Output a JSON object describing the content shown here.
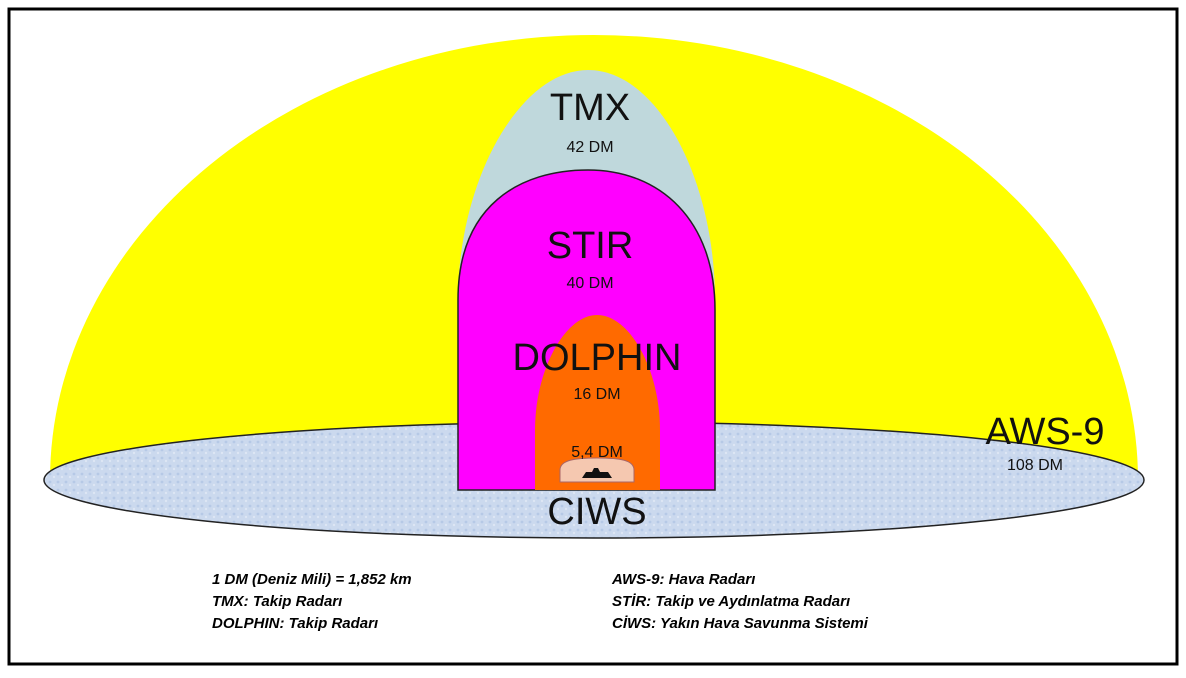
{
  "nodes": [
    {
      "label": "AWS-9",
      "range": "108 DM"
    },
    {
      "label": "TMX",
      "range": "42 DM"
    },
    {
      "label": "STIR",
      "range": "40 DM"
    },
    {
      "label": "DOLPHIN",
      "range": "16 DM"
    },
    {
      "label": "CIWS",
      "range": "5,4 DM"
    }
  ],
  "legend": {
    "left": [
      "1 DM (Deniz Mili) = 1,852 km",
      "TMX: Takip Radarı",
      "DOLPHIN: Takip Radarı"
    ],
    "right": [
      "AWS-9: Hava Radarı",
      "STİR: Takip ve Aydınlatma Radarı",
      "CİWS: Yakın Hava Savunma Sistemi"
    ]
  }
}
